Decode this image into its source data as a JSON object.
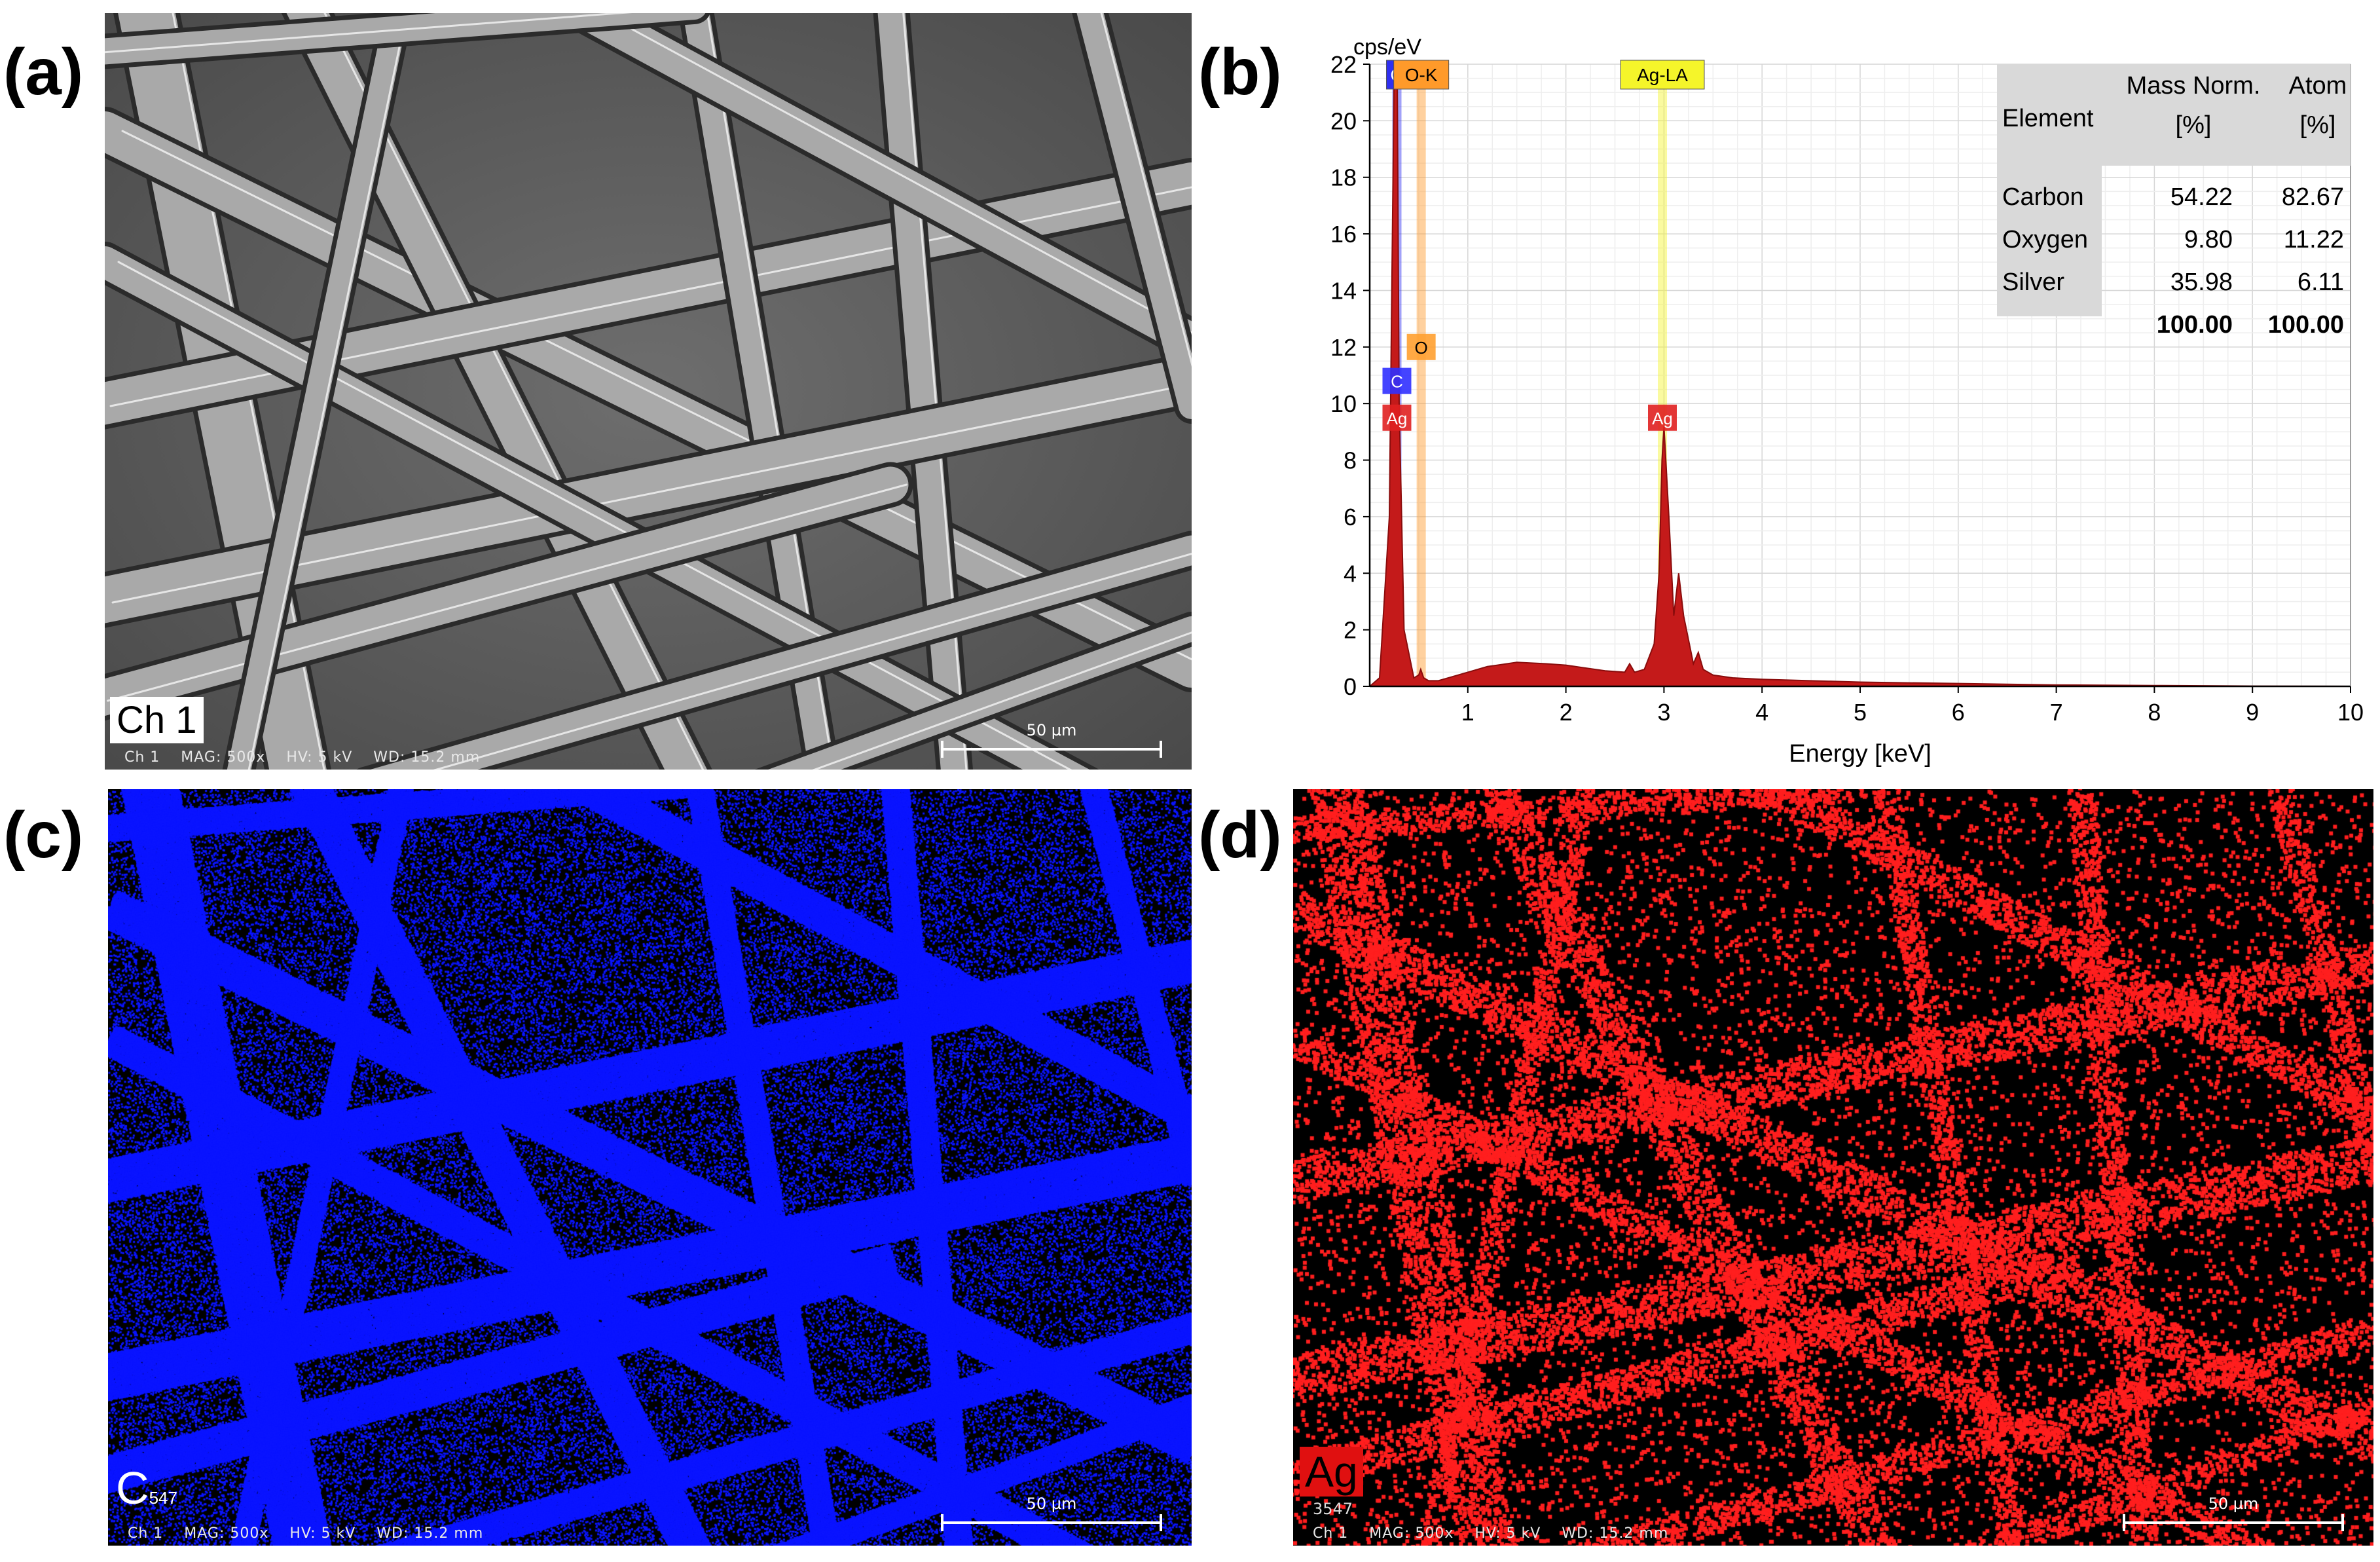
{
  "labels": {
    "a": "(a)",
    "b": "(b)",
    "c": "(c)",
    "d": "(d)"
  },
  "panel_a": {
    "channel_label": "Ch 1",
    "info": "Ch 1    MAG: 500x    HV: 5 kV    WD: 15.2 mm",
    "scale": "50 µm"
  },
  "panel_c": {
    "element": "C",
    "subscript": "547",
    "info": "Ch 1    MAG: 500x    HV: 5 kV    WD: 15.2 mm",
    "scale": "50 µm",
    "color": "#0a14ff"
  },
  "panel_d": {
    "element": "Ag",
    "subscript": "3547",
    "info": "Ch 1    MAG: 500x    HV: 5 kV    WD: 15.2 mm",
    "scale": "50 µm",
    "color": "#ff1e1e"
  },
  "chart_data": {
    "type": "area",
    "ylabel": "cps/eV",
    "xlabel": "Energy [keV]",
    "xlim": [
      0,
      10
    ],
    "ylim": [
      0,
      22
    ],
    "xticks": [
      1,
      2,
      3,
      4,
      5,
      6,
      7,
      8,
      9,
      10
    ],
    "yticks": [
      0,
      2,
      4,
      6,
      8,
      10,
      12,
      14,
      16,
      18,
      20,
      22
    ],
    "grid": true,
    "x": [
      0,
      0.1,
      0.2,
      0.25,
      0.28,
      0.3,
      0.35,
      0.45,
      0.5,
      0.52,
      0.55,
      0.6,
      0.7,
      0.8,
      1.0,
      1.2,
      1.5,
      1.8,
      2.0,
      2.2,
      2.4,
      2.6,
      2.65,
      2.7,
      2.8,
      2.9,
      2.95,
      2.98,
      3.0,
      3.05,
      3.1,
      3.15,
      3.2,
      3.3,
      3.35,
      3.4,
      3.5,
      3.7,
      4.0,
      5.0,
      6.0,
      7.0,
      8.0,
      9.0,
      10.0
    ],
    "y": [
      0,
      0.3,
      6,
      22,
      22,
      10,
      2,
      0.3,
      0.4,
      0.6,
      0.3,
      0.2,
      0.2,
      0.3,
      0.5,
      0.7,
      0.85,
      0.8,
      0.75,
      0.65,
      0.55,
      0.5,
      0.8,
      0.5,
      0.6,
      1.5,
      4,
      8,
      9.2,
      6,
      2.5,
      4,
      2.5,
      0.8,
      1.2,
      0.6,
      0.4,
      0.3,
      0.25,
      0.15,
      0.1,
      0.05,
      0.03,
      0.01,
      0
    ],
    "line_markers": [
      {
        "label": "C",
        "x": 0.277,
        "color": "#2f2ff0"
      },
      {
        "label": "O-K",
        "x": 0.525,
        "color": "#ff9a2a"
      },
      {
        "label": "Ag-LA",
        "x": 2.984,
        "color": "#f5f52a"
      }
    ],
    "peak_labels": [
      {
        "label": "C",
        "x": 0.277,
        "y": 10.8,
        "bg": "#3030ff",
        "fg": "#ffffff"
      },
      {
        "label": "Ag",
        "x": 0.277,
        "y": 9.5,
        "bg": "#e02020",
        "fg": "#ffffff"
      },
      {
        "label": "O",
        "x": 0.525,
        "y": 12.0,
        "bg": "#ffa030",
        "fg": "#000000"
      },
      {
        "label": "Ag",
        "x": 2.984,
        "y": 9.5,
        "bg": "#e02020",
        "fg": "#ffffff"
      }
    ],
    "table": {
      "headers": [
        "Element",
        "Mass Norm.\n[%]",
        "Atom\n[%]"
      ],
      "rows": [
        [
          "Carbon",
          "54.22",
          "82.67"
        ],
        [
          "Oxygen",
          "9.80",
          "11.22"
        ],
        [
          "Silver",
          "35.98",
          "6.11"
        ],
        [
          "",
          "100.00",
          "100.00"
        ]
      ]
    },
    "fill_color": "#c41a1a"
  }
}
